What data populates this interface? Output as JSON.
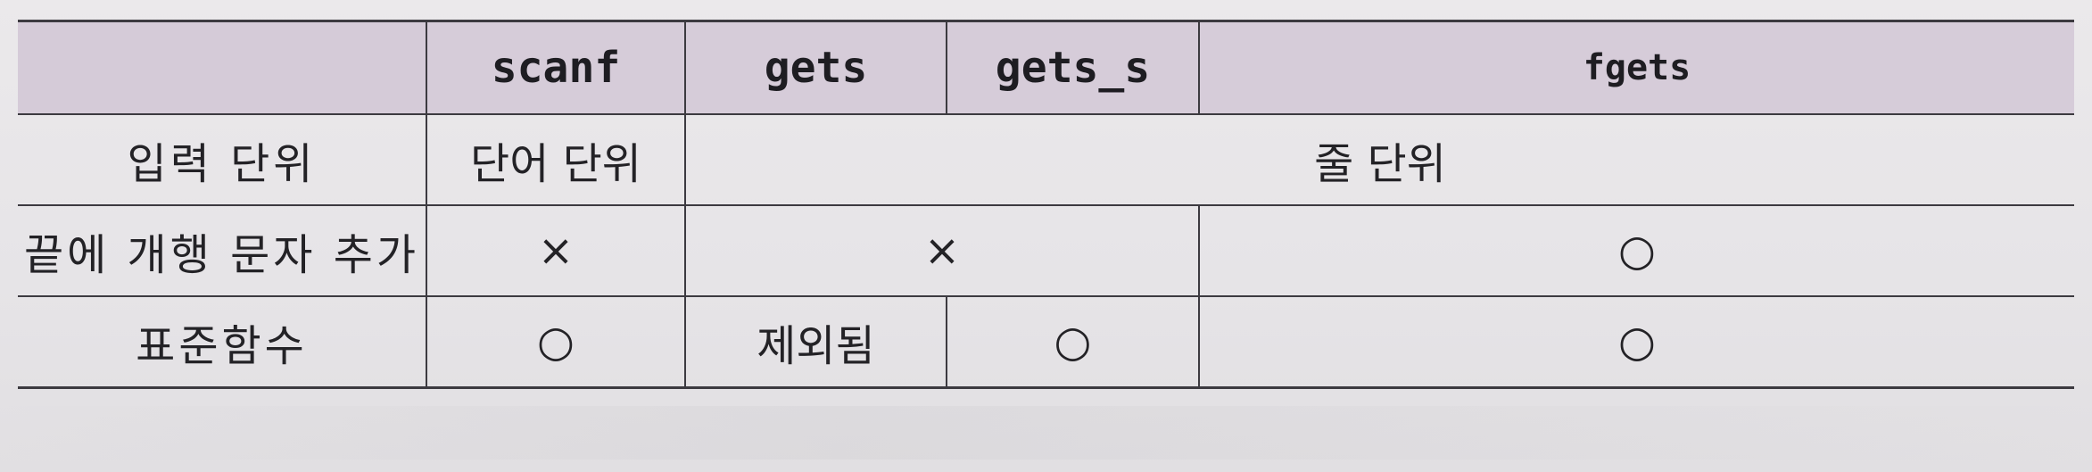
{
  "table": {
    "headers": [
      "",
      "scanf",
      "gets",
      "gets_s",
      "fgets"
    ],
    "rows": [
      {
        "label": "입력 단위",
        "scanf": "단어 단위",
        "gets_fgets": "줄 단위"
      },
      {
        "label": "끝에 개행 문자 추가",
        "scanf": "×",
        "gets_gets_s": "×",
        "fgets": "○"
      },
      {
        "label": "표준함수",
        "scanf": "○",
        "gets": "제외됨",
        "gets_s": "○",
        "fgets": "○"
      }
    ]
  }
}
